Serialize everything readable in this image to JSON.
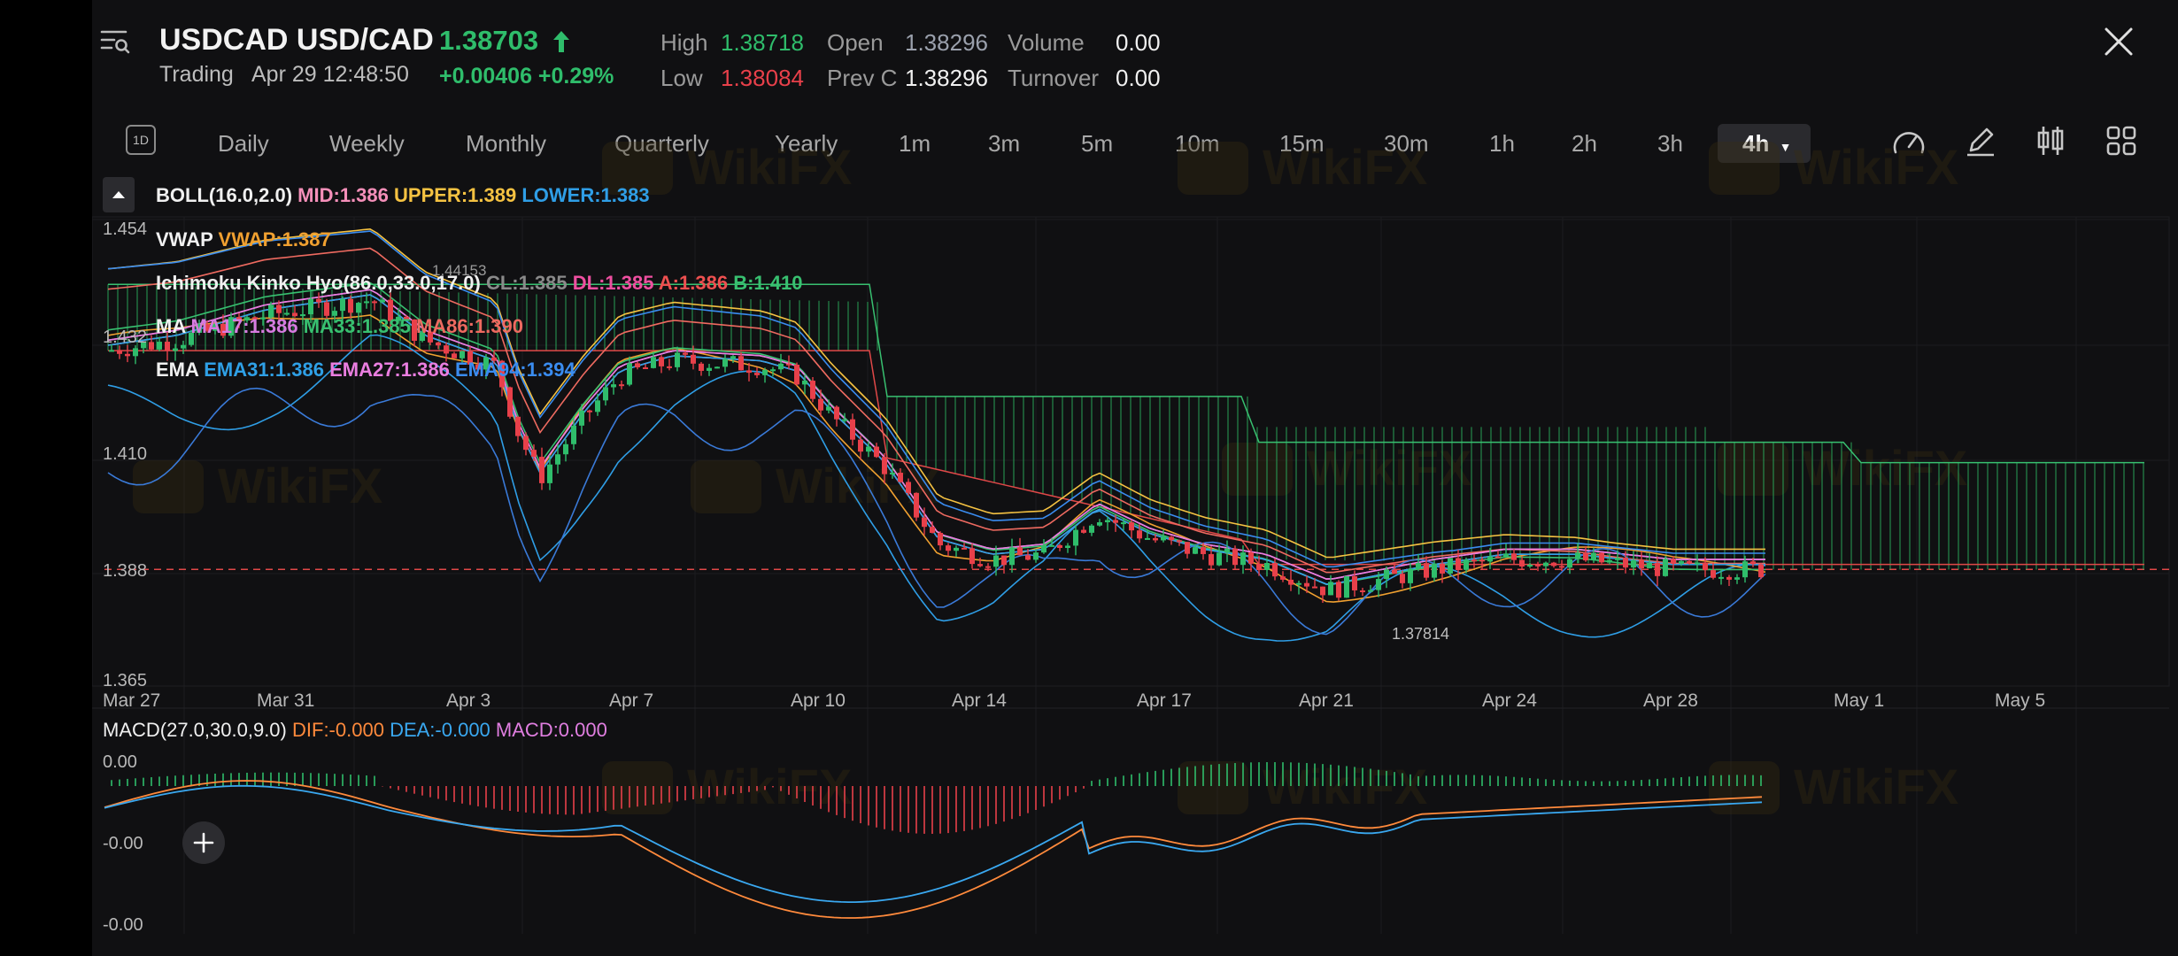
{
  "header": {
    "symbol": "USDCAD USD/CAD",
    "price": "1.38703",
    "status": "Trading",
    "datetime": "Apr 29 12:48:50",
    "change": "+0.00406 +0.29%",
    "high_label": "High",
    "high": "1.38718",
    "low_label": "Low",
    "low": "1.38084",
    "open_label": "Open",
    "open": "1.38296",
    "prevc_label": "Prev C",
    "prevc": "1.38296",
    "volume_label": "Volume",
    "volume": "0.00",
    "turnover_label": "Turnover",
    "turnover": "0.00"
  },
  "timeframes": {
    "icon_badge": "1D",
    "items": [
      "Daily",
      "Weekly",
      "Monthly",
      "Quarterly",
      "Yearly",
      "1m",
      "3m",
      "5m",
      "10m",
      "15m",
      "30m",
      "1h",
      "2h",
      "3h"
    ],
    "active": "4h"
  },
  "indicators": {
    "boll": {
      "name": "BOLL(16.0,2.0)",
      "mid": "MID:1.386",
      "upper": "UPPER:1.389",
      "lower": "LOWER:1.383"
    },
    "vwap": {
      "name": "VWAP",
      "value": "VWAP:1.387"
    },
    "ichimoku": {
      "name": "Ichimoku Kinko Hyo(86.0,33.0,17.0)",
      "cl": "CL:1.385",
      "dl": "DL:1.385",
      "a": "A:1.386",
      "b": "B:1.410"
    },
    "ma": {
      "name": "MA",
      "ma17": "MA17:1.386",
      "ma33": "MA33:1.385",
      "ma86": "MA86:1.390"
    },
    "ema": {
      "name": "EMA",
      "ema31": "EMA31:1.386",
      "ema27": "EMA27:1.386",
      "ema94": "EMA94:1.394"
    }
  },
  "price_axis": [
    "1.454",
    "1.432",
    "1.410",
    "1.388",
    "1.365"
  ],
  "date_axis": [
    "Mar 27",
    "Mar 31",
    "Apr 3",
    "Apr 7",
    "Apr 10",
    "Apr 14",
    "Apr 17",
    "Apr 21",
    "Apr 24",
    "Apr 28",
    "May 1",
    "May 5"
  ],
  "annotations": {
    "low_marker": "1.37814",
    "high_marker": "1.44153"
  },
  "macd": {
    "name": "MACD(27.0,30.0,9.0)",
    "dif": "DIF:-0.000",
    "dea": "DEA:-0.000",
    "macd": "MACD:0.000",
    "axis": [
      "0.00",
      "-0.00",
      "-0.00"
    ]
  },
  "watermark": "WikiFX",
  "colors": {
    "up": "#2fbd6b",
    "down": "#e8404a",
    "boll_mid": "#f58fb9",
    "boll_upper": "#f5c242",
    "boll_lower": "#2f9ee6",
    "vwap": "#f0a030",
    "ma17": "#d77be0",
    "ma33": "#38c070",
    "ma86": "#ee6a60",
    "ema31": "#2fa0e6",
    "ema27": "#ea7ee0",
    "ema94": "#3a8cf0",
    "dif": "#ff8a3c",
    "dea": "#3aa8f0"
  },
  "chart_data": {
    "type": "candlestick",
    "symbol": "USDCAD",
    "interval": "4h",
    "ylim": [
      1.365,
      1.454
    ],
    "x": [
      "Mar 27",
      "Mar 31",
      "Apr 3",
      "Apr 7",
      "Apr 10",
      "Apr 14",
      "Apr 17",
      "Apr 21",
      "Apr 24",
      "Apr 28"
    ],
    "close": [
      1.432,
      1.437,
      1.433,
      1.427,
      1.414,
      1.389,
      1.398,
      1.38,
      1.388,
      1.387
    ],
    "last_price": 1.38703,
    "low_marker": 1.37814,
    "high_marker": 1.44153
  }
}
